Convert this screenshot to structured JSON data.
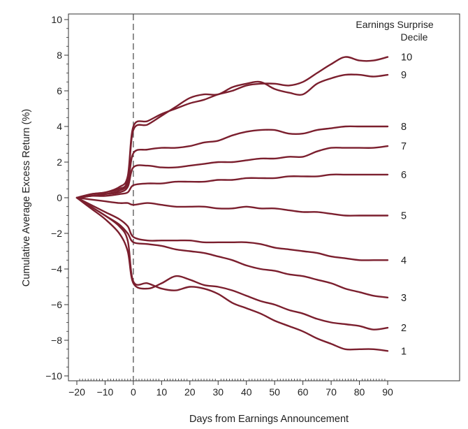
{
  "chart_data": {
    "type": "line",
    "xlabel": "Days from Earnings Announcement",
    "ylabel": "Cumulative Average Excess Return (%)",
    "xlim": [
      -20,
      90
    ],
    "ylim": [
      -10,
      10
    ],
    "x_ticks": [
      -20,
      -10,
      0,
      10,
      20,
      30,
      40,
      50,
      60,
      70,
      80,
      90
    ],
    "x_tick_labels": [
      "−20",
      "−10",
      "0",
      "10",
      "20",
      "30",
      "40",
      "50",
      "60",
      "70",
      "80",
      "90"
    ],
    "y_ticks": [
      -10,
      -8,
      -6,
      -4,
      -2,
      0,
      2,
      4,
      6,
      8,
      10
    ],
    "y_tick_labels": [
      "−10",
      "−8",
      "−6",
      "−4",
      "−2",
      "0",
      "2",
      "4",
      "6",
      "8",
      "10"
    ],
    "event_line_x": 0,
    "grid": false,
    "line_color": "#7b1f2e",
    "legend": {
      "title_line1": "Earnings Surprise",
      "title_line2": "Decile",
      "placement": "top-right"
    },
    "series": [
      {
        "name": "10",
        "x": [
          -20,
          -15,
          -10,
          -5,
          -2,
          0,
          5,
          10,
          15,
          20,
          25,
          30,
          35,
          40,
          45,
          50,
          55,
          60,
          65,
          70,
          75,
          80,
          85,
          90
        ],
        "y": [
          0,
          0.2,
          0.3,
          0.6,
          1.2,
          4.0,
          4.3,
          4.7,
          5.0,
          5.3,
          5.5,
          5.8,
          6.0,
          6.3,
          6.4,
          6.4,
          6.3,
          6.5,
          7.0,
          7.5,
          7.9,
          7.7,
          7.7,
          7.9
        ]
      },
      {
        "name": "9",
        "x": [
          -20,
          -15,
          -10,
          -5,
          -2,
          0,
          5,
          10,
          15,
          20,
          25,
          30,
          35,
          40,
          45,
          50,
          55,
          60,
          65,
          70,
          75,
          80,
          85,
          90
        ],
        "y": [
          0,
          0.2,
          0.3,
          0.5,
          1.0,
          3.8,
          4.1,
          4.6,
          5.1,
          5.6,
          5.8,
          5.8,
          6.2,
          6.4,
          6.5,
          6.1,
          5.9,
          5.8,
          6.4,
          6.7,
          6.9,
          6.9,
          6.8,
          6.9
        ]
      },
      {
        "name": "8",
        "x": [
          -20,
          -15,
          -10,
          -5,
          -2,
          0,
          5,
          10,
          15,
          20,
          25,
          30,
          35,
          40,
          45,
          50,
          55,
          60,
          65,
          70,
          75,
          80,
          85,
          90
        ],
        "y": [
          0,
          0.1,
          0.2,
          0.4,
          0.8,
          2.5,
          2.7,
          2.8,
          2.8,
          2.9,
          3.1,
          3.2,
          3.5,
          3.7,
          3.8,
          3.8,
          3.6,
          3.6,
          3.8,
          3.9,
          4.0,
          4.0,
          4.0,
          4.0
        ]
      },
      {
        "name": "7",
        "x": [
          -20,
          -15,
          -10,
          -5,
          -2,
          0,
          5,
          10,
          15,
          20,
          25,
          30,
          35,
          40,
          45,
          50,
          55,
          60,
          65,
          70,
          75,
          80,
          85,
          90
        ],
        "y": [
          0,
          0.1,
          0.2,
          0.3,
          0.6,
          1.7,
          1.8,
          1.7,
          1.7,
          1.8,
          1.9,
          2.0,
          2.0,
          2.1,
          2.2,
          2.2,
          2.3,
          2.3,
          2.6,
          2.8,
          2.8,
          2.8,
          2.8,
          2.9
        ]
      },
      {
        "name": "6",
        "x": [
          -20,
          -15,
          -10,
          -5,
          -2,
          0,
          5,
          10,
          15,
          20,
          25,
          30,
          35,
          40,
          45,
          50,
          55,
          60,
          65,
          70,
          75,
          80,
          85,
          90
        ],
        "y": [
          0,
          0.1,
          0.1,
          0.2,
          0.3,
          0.7,
          0.8,
          0.8,
          0.9,
          0.9,
          0.9,
          1.0,
          1.0,
          1.1,
          1.1,
          1.1,
          1.2,
          1.2,
          1.2,
          1.3,
          1.3,
          1.3,
          1.3,
          1.3
        ]
      },
      {
        "name": "5",
        "x": [
          -20,
          -15,
          -10,
          -5,
          -2,
          0,
          5,
          10,
          15,
          20,
          25,
          30,
          35,
          40,
          45,
          50,
          55,
          60,
          65,
          70,
          75,
          80,
          85,
          90
        ],
        "y": [
          0,
          -0.1,
          -0.2,
          -0.3,
          -0.3,
          -0.4,
          -0.3,
          -0.4,
          -0.5,
          -0.5,
          -0.5,
          -0.6,
          -0.6,
          -0.5,
          -0.6,
          -0.6,
          -0.7,
          -0.8,
          -0.8,
          -0.9,
          -1.0,
          -1.0,
          -1.0,
          -1.0
        ]
      },
      {
        "name": "4",
        "x": [
          -20,
          -15,
          -10,
          -5,
          -2,
          0,
          5,
          10,
          15,
          20,
          25,
          30,
          35,
          40,
          45,
          50,
          55,
          60,
          65,
          70,
          75,
          80,
          85,
          90
        ],
        "y": [
          0,
          -0.4,
          -0.8,
          -1.2,
          -1.6,
          -2.2,
          -2.4,
          -2.4,
          -2.4,
          -2.4,
          -2.5,
          -2.5,
          -2.5,
          -2.5,
          -2.6,
          -2.8,
          -2.9,
          -3.0,
          -3.1,
          -3.3,
          -3.4,
          -3.5,
          -3.5,
          -3.5
        ]
      },
      {
        "name": "3",
        "x": [
          -20,
          -15,
          -10,
          -5,
          -2,
          0,
          5,
          10,
          15,
          20,
          25,
          30,
          35,
          40,
          45,
          50,
          55,
          60,
          65,
          70,
          75,
          80,
          85,
          90
        ],
        "y": [
          0,
          -0.5,
          -1.0,
          -1.5,
          -2.0,
          -2.5,
          -2.6,
          -2.7,
          -2.9,
          -3.0,
          -3.1,
          -3.3,
          -3.5,
          -3.8,
          -4.0,
          -4.1,
          -4.3,
          -4.4,
          -4.6,
          -4.8,
          -5.1,
          -5.3,
          -5.5,
          -5.6
        ]
      },
      {
        "name": "2",
        "x": [
          -20,
          -15,
          -10,
          -5,
          -2,
          0,
          5,
          10,
          15,
          20,
          25,
          30,
          35,
          40,
          45,
          50,
          55,
          60,
          65,
          70,
          75,
          80,
          85,
          90
        ],
        "y": [
          0,
          -0.6,
          -1.2,
          -2.0,
          -3.0,
          -4.8,
          -5.1,
          -4.8,
          -4.4,
          -4.6,
          -4.9,
          -5.0,
          -5.2,
          -5.5,
          -5.8,
          -6.0,
          -6.3,
          -6.5,
          -6.8,
          -7.0,
          -7.1,
          -7.2,
          -7.4,
          -7.3
        ]
      },
      {
        "name": "1",
        "x": [
          -20,
          -15,
          -10,
          -5,
          -2,
          0,
          5,
          10,
          15,
          20,
          25,
          30,
          35,
          40,
          45,
          50,
          55,
          60,
          65,
          70,
          75,
          80,
          85,
          90
        ],
        "y": [
          0,
          -0.5,
          -1.0,
          -1.6,
          -2.4,
          -4.7,
          -4.8,
          -5.1,
          -5.2,
          -5.0,
          -5.1,
          -5.4,
          -5.9,
          -6.2,
          -6.5,
          -6.9,
          -7.2,
          -7.5,
          -7.9,
          -8.2,
          -8.5,
          -8.5,
          -8.5,
          -8.6
        ]
      }
    ]
  }
}
